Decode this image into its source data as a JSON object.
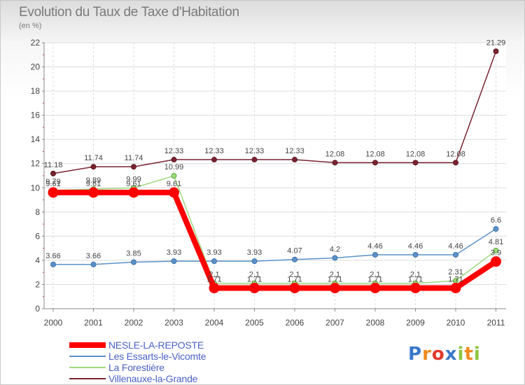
{
  "chart_data": {
    "type": "line",
    "title": "Evolution du Taux de Taxe d'Habitation",
    "subtitle": "(en %)",
    "x": [
      "2000",
      "2001",
      "2002",
      "2003",
      "2004",
      "2005",
      "2006",
      "2007",
      "2008",
      "2009",
      "2010",
      "2011"
    ],
    "ylim": [
      0,
      22
    ],
    "yticks": [
      "0",
      "2",
      "4",
      "6",
      "8",
      "10",
      "12",
      "14",
      "16",
      "18",
      "20",
      "22"
    ],
    "grid": true,
    "series": [
      {
        "name": "Villenauxe-la-Grande",
        "color": "#7a2430",
        "values": [
          11.18,
          11.74,
          11.74,
          12.33,
          12.33,
          12.33,
          12.33,
          12.08,
          12.08,
          12.08,
          12.08,
          21.29
        ],
        "labels": [
          "11.18",
          "11.74",
          "11.74",
          "12.33",
          "12.33",
          "12.33",
          "12.33",
          "12.08",
          "12.08",
          "12.08",
          "12.08",
          "21.29"
        ]
      },
      {
        "name": "Les Essarts-le-Vicomte",
        "color": "#5b92c8",
        "values": [
          3.66,
          3.66,
          3.85,
          3.93,
          3.93,
          3.93,
          4.07,
          4.2,
          4.46,
          4.46,
          4.46,
          6.6
        ],
        "labels": [
          "3.66",
          "3.66",
          "3.85",
          "3.93",
          "3.93",
          "3.93",
          "4.07",
          "4.2",
          "4.46",
          "4.46",
          "4.46",
          "6.6"
        ]
      },
      {
        "name": "La Forestière",
        "color": "#9ed97c",
        "values": [
          9.79,
          9.89,
          9.99,
          10.99,
          2.1,
          2.1,
          2.1,
          2.1,
          2.1,
          2.1,
          2.31,
          4.81
        ],
        "labels": [
          "9.79",
          "9.89",
          "9.99",
          "10.99",
          "2.1",
          "2.1",
          "2.1",
          "2.1",
          "2.1",
          "2.1",
          "2.31",
          "4.81"
        ]
      },
      {
        "name": "NESLE-LA-REPOSTE",
        "color": "#ff0000",
        "values": [
          9.61,
          9.61,
          9.61,
          9.61,
          1.71,
          1.71,
          1.71,
          1.71,
          1.71,
          1.71,
          1.71,
          3.9
        ],
        "labels": [
          "9.61",
          "9.61",
          "9.61",
          "9.61",
          "1.71",
          "1.71",
          "1.71",
          "1.71",
          "1.71",
          "1.71",
          "1.71",
          "3.9"
        ]
      }
    ],
    "legend": [
      "NESLE-LA-REPOSTE",
      "Les Essarts-le-Vicomte",
      "La Forestière",
      "Villenauxe-la-Grande"
    ],
    "legend_position": "bottom-left"
  },
  "brand": {
    "letters": [
      "P",
      "r",
      "o",
      "x",
      "i",
      "t",
      "i"
    ],
    "colors": [
      "#3a78c9",
      "#f08a1e",
      "#e03a2c",
      "#3a78c9",
      "#8cc63f",
      "#f08a1e",
      "#8cc63f"
    ]
  }
}
